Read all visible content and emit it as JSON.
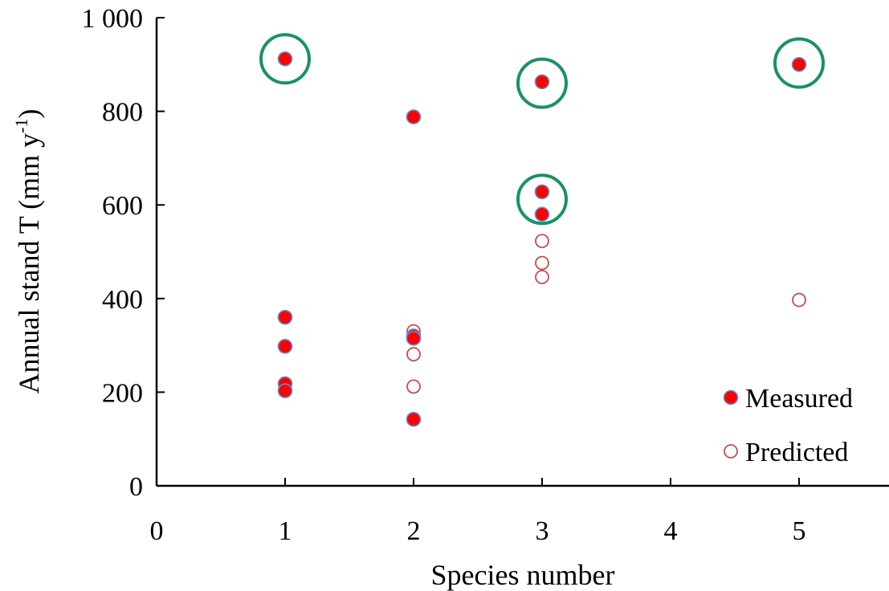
{
  "chart_data": {
    "type": "scatter",
    "xlabel": "Species number",
    "ylabel_main": "Annual stand T (mm y",
    "ylabel_sup": "-1",
    "ylabel_end": ")",
    "xlim": [
      0,
      5.7
    ],
    "ylim": [
      0,
      1000
    ],
    "xticks": [
      0,
      1,
      2,
      3,
      4,
      5
    ],
    "yticks": [
      0,
      200,
      400,
      600,
      800,
      1000
    ],
    "ytick_labels": [
      "0",
      "200",
      "400",
      "600",
      "800",
      "1 000"
    ],
    "xtick_labels": [
      "0",
      "1",
      "2",
      "3",
      "4",
      "5"
    ],
    "legend_position": "bottom-right",
    "series": [
      {
        "name": "Measured",
        "marker": "filled-circle",
        "fill_color": "#ff0000",
        "edge_color": "#5b8fd6",
        "points": [
          {
            "x": 1,
            "y": 912
          },
          {
            "x": 1,
            "y": 360
          },
          {
            "x": 1,
            "y": 298
          },
          {
            "x": 1,
            "y": 218
          },
          {
            "x": 1,
            "y": 203
          },
          {
            "x": 2,
            "y": 788
          },
          {
            "x": 2,
            "y": 320
          },
          {
            "x": 2,
            "y": 315
          },
          {
            "x": 2,
            "y": 142
          },
          {
            "x": 3,
            "y": 863
          },
          {
            "x": 3,
            "y": 628
          },
          {
            "x": 3,
            "y": 580
          },
          {
            "x": 5,
            "y": 900
          }
        ]
      },
      {
        "name": "Predicted",
        "marker": "open-circle",
        "edge_color": "#c0504d",
        "points": [
          {
            "x": 2,
            "y": 330
          },
          {
            "x": 2,
            "y": 281
          },
          {
            "x": 2,
            "y": 212
          },
          {
            "x": 3,
            "y": 523
          },
          {
            "x": 3,
            "y": 476
          },
          {
            "x": 3,
            "y": 446
          },
          {
            "x": 5,
            "y": 397
          }
        ]
      }
    ],
    "highlights": {
      "color": "#1a9166",
      "points": [
        {
          "x": 1,
          "y": 912
        },
        {
          "x": 3,
          "y": 860
        },
        {
          "x": 3,
          "y": 612
        },
        {
          "x": 5,
          "y": 903
        }
      ]
    }
  }
}
